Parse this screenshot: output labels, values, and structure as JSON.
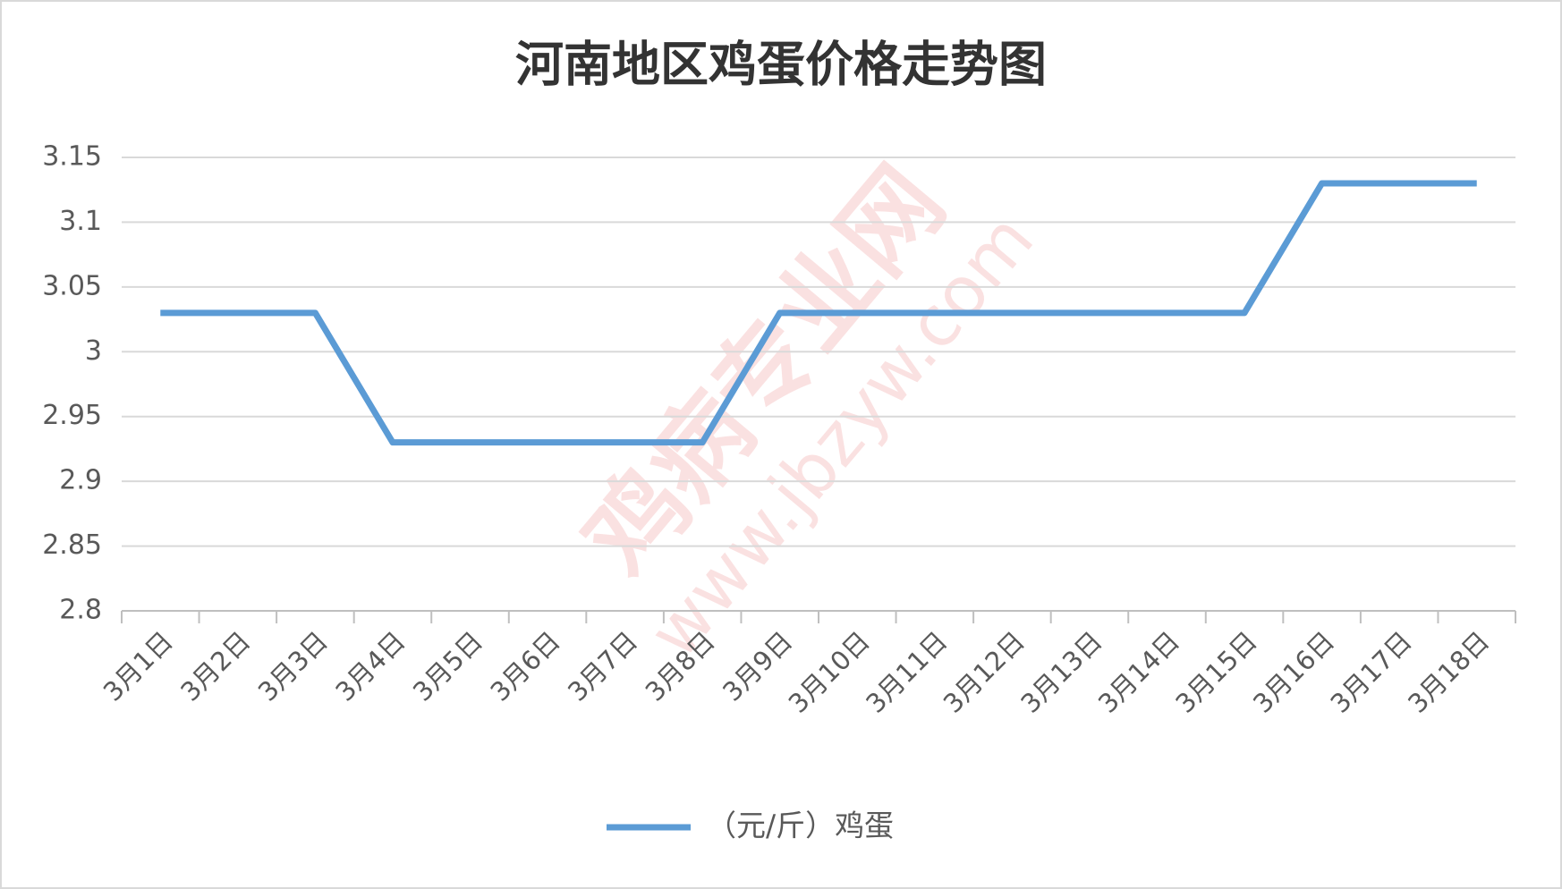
{
  "chart_data": {
    "type": "line",
    "title": "河南地区鸡蛋价格走势图",
    "categories": [
      "3月1日",
      "3月2日",
      "3月3日",
      "3月4日",
      "3月5日",
      "3月6日",
      "3月7日",
      "3月8日",
      "3月9日",
      "3月10日",
      "3月11日",
      "3月12日",
      "3月13日",
      "3月14日",
      "3月15日",
      "3月16日",
      "3月17日",
      "3月18日"
    ],
    "series": [
      {
        "name": "（元/斤）鸡蛋",
        "color": "#5b9bd5",
        "values": [
          3.03,
          3.03,
          3.03,
          2.93,
          2.93,
          2.93,
          2.93,
          2.93,
          3.03,
          3.03,
          3.03,
          3.03,
          3.03,
          3.03,
          3.03,
          3.13,
          3.13,
          3.13
        ]
      }
    ],
    "ylim": [
      2.8,
      3.15
    ],
    "yticks": [
      2.8,
      2.85,
      2.9,
      2.95,
      3,
      3.05,
      3.1,
      3.15
    ],
    "grid": true,
    "legend": "bottom",
    "watermark": {
      "text": "鸡病专业网",
      "url": "www.jbzyw.com"
    }
  }
}
